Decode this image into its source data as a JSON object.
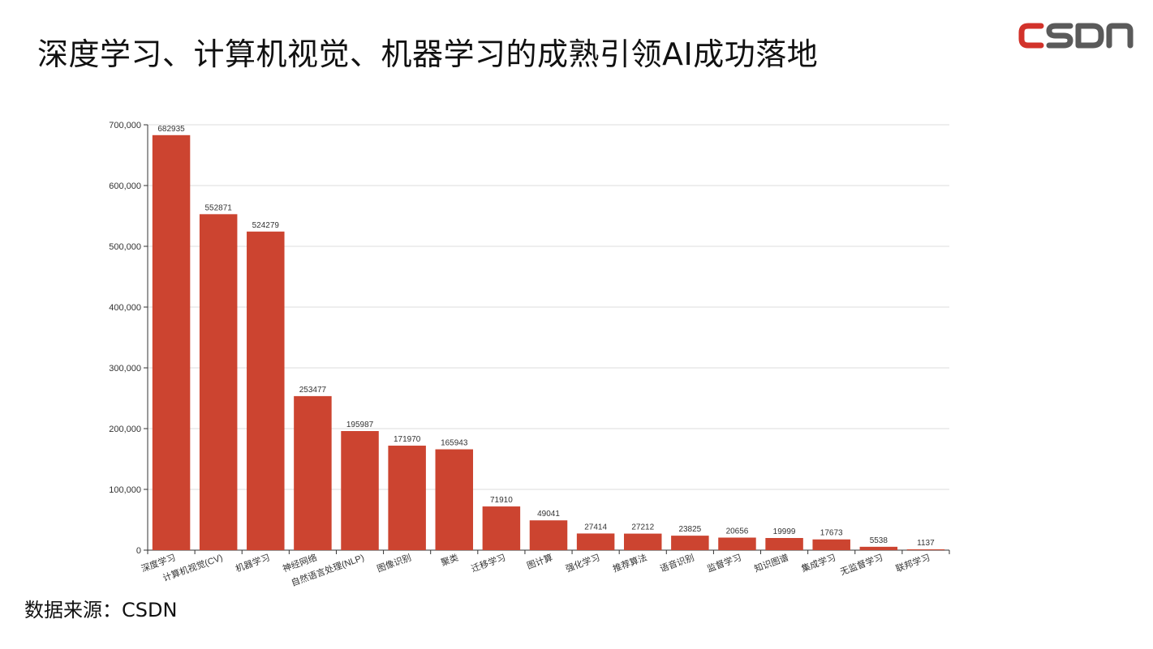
{
  "title": "深度学习、计算机视觉、机器学习的成熟引领AI成功落地",
  "logo_text": "CSDN",
  "source": "数据来源：CSDN",
  "colors": {
    "bar": "#CC4430",
    "grid": "#DDDDDD",
    "axis": "#333333",
    "text": "#333333"
  },
  "chart_data": {
    "type": "bar",
    "categories": [
      "深度学习",
      "计算机视觉(CV)",
      "机器学习",
      "神经网络",
      "自然语言处理(NLP)",
      "图像识别",
      "聚类",
      "迁移学习",
      "图计算",
      "强化学习",
      "推荐算法",
      "语音识别",
      "监督学习",
      "知识图谱",
      "集成学习",
      "无监督学习",
      "联邦学习"
    ],
    "values": [
      682935,
      552871,
      524279,
      253477,
      195987,
      171970,
      165943,
      71910,
      49041,
      27414,
      27212,
      23825,
      20656,
      19999,
      17673,
      5538,
      1137
    ],
    "yticks": [
      "0",
      "100,000",
      "200,000",
      "300,000",
      "400,000",
      "500,000",
      "600,000",
      "700,000"
    ],
    "ylim": [
      0,
      700000
    ],
    "grid": true,
    "title": "",
    "xlabel": "",
    "ylabel": ""
  }
}
